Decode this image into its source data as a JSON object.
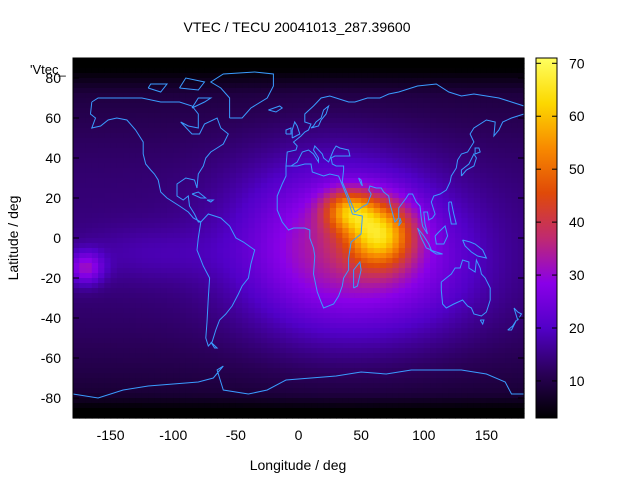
{
  "chart_data": {
    "type": "heatmap",
    "title": "VTEC / TECU 20041013_287.39600",
    "xlabel": "Longitude / deg",
    "ylabel": "Latitude / deg",
    "key_label": "'Vtec_",
    "xlim": [
      -180,
      180
    ],
    "ylim": [
      -90,
      90
    ],
    "xticks": [
      -150,
      -100,
      -50,
      0,
      50,
      100,
      150
    ],
    "yticks": [
      -80,
      -60,
      -40,
      -20,
      0,
      20,
      40,
      60,
      80
    ],
    "colorbar": {
      "range": [
        3,
        71
      ],
      "ticks": [
        10,
        20,
        30,
        40,
        50,
        60,
        70
      ],
      "palette": [
        "#000000",
        "#2a0058",
        "#5200c8",
        "#8a00e8",
        "#c02a70",
        "#e04a08",
        "#f88a00",
        "#fcd800",
        "#ffff60"
      ]
    },
    "grid_resolution": {
      "dlon": 5,
      "dlat": 2.5
    },
    "features": [
      {
        "name": "background_low",
        "description": "low TEC over polar caps",
        "value": 6
      },
      {
        "name": "base_mid_latitudes",
        "value": 14
      },
      {
        "name": "dayside_peak_africa_indian_ocean",
        "lon": 65,
        "lat": 2,
        "value": 62
      },
      {
        "name": "secondary_peak_arabia",
        "lon": 40,
        "lat": 14,
        "value": 58
      },
      {
        "name": "pacific_equatorial_patch",
        "lon": -170,
        "lat": -15,
        "value": 30
      }
    ],
    "grid": false,
    "legend": "none"
  }
}
